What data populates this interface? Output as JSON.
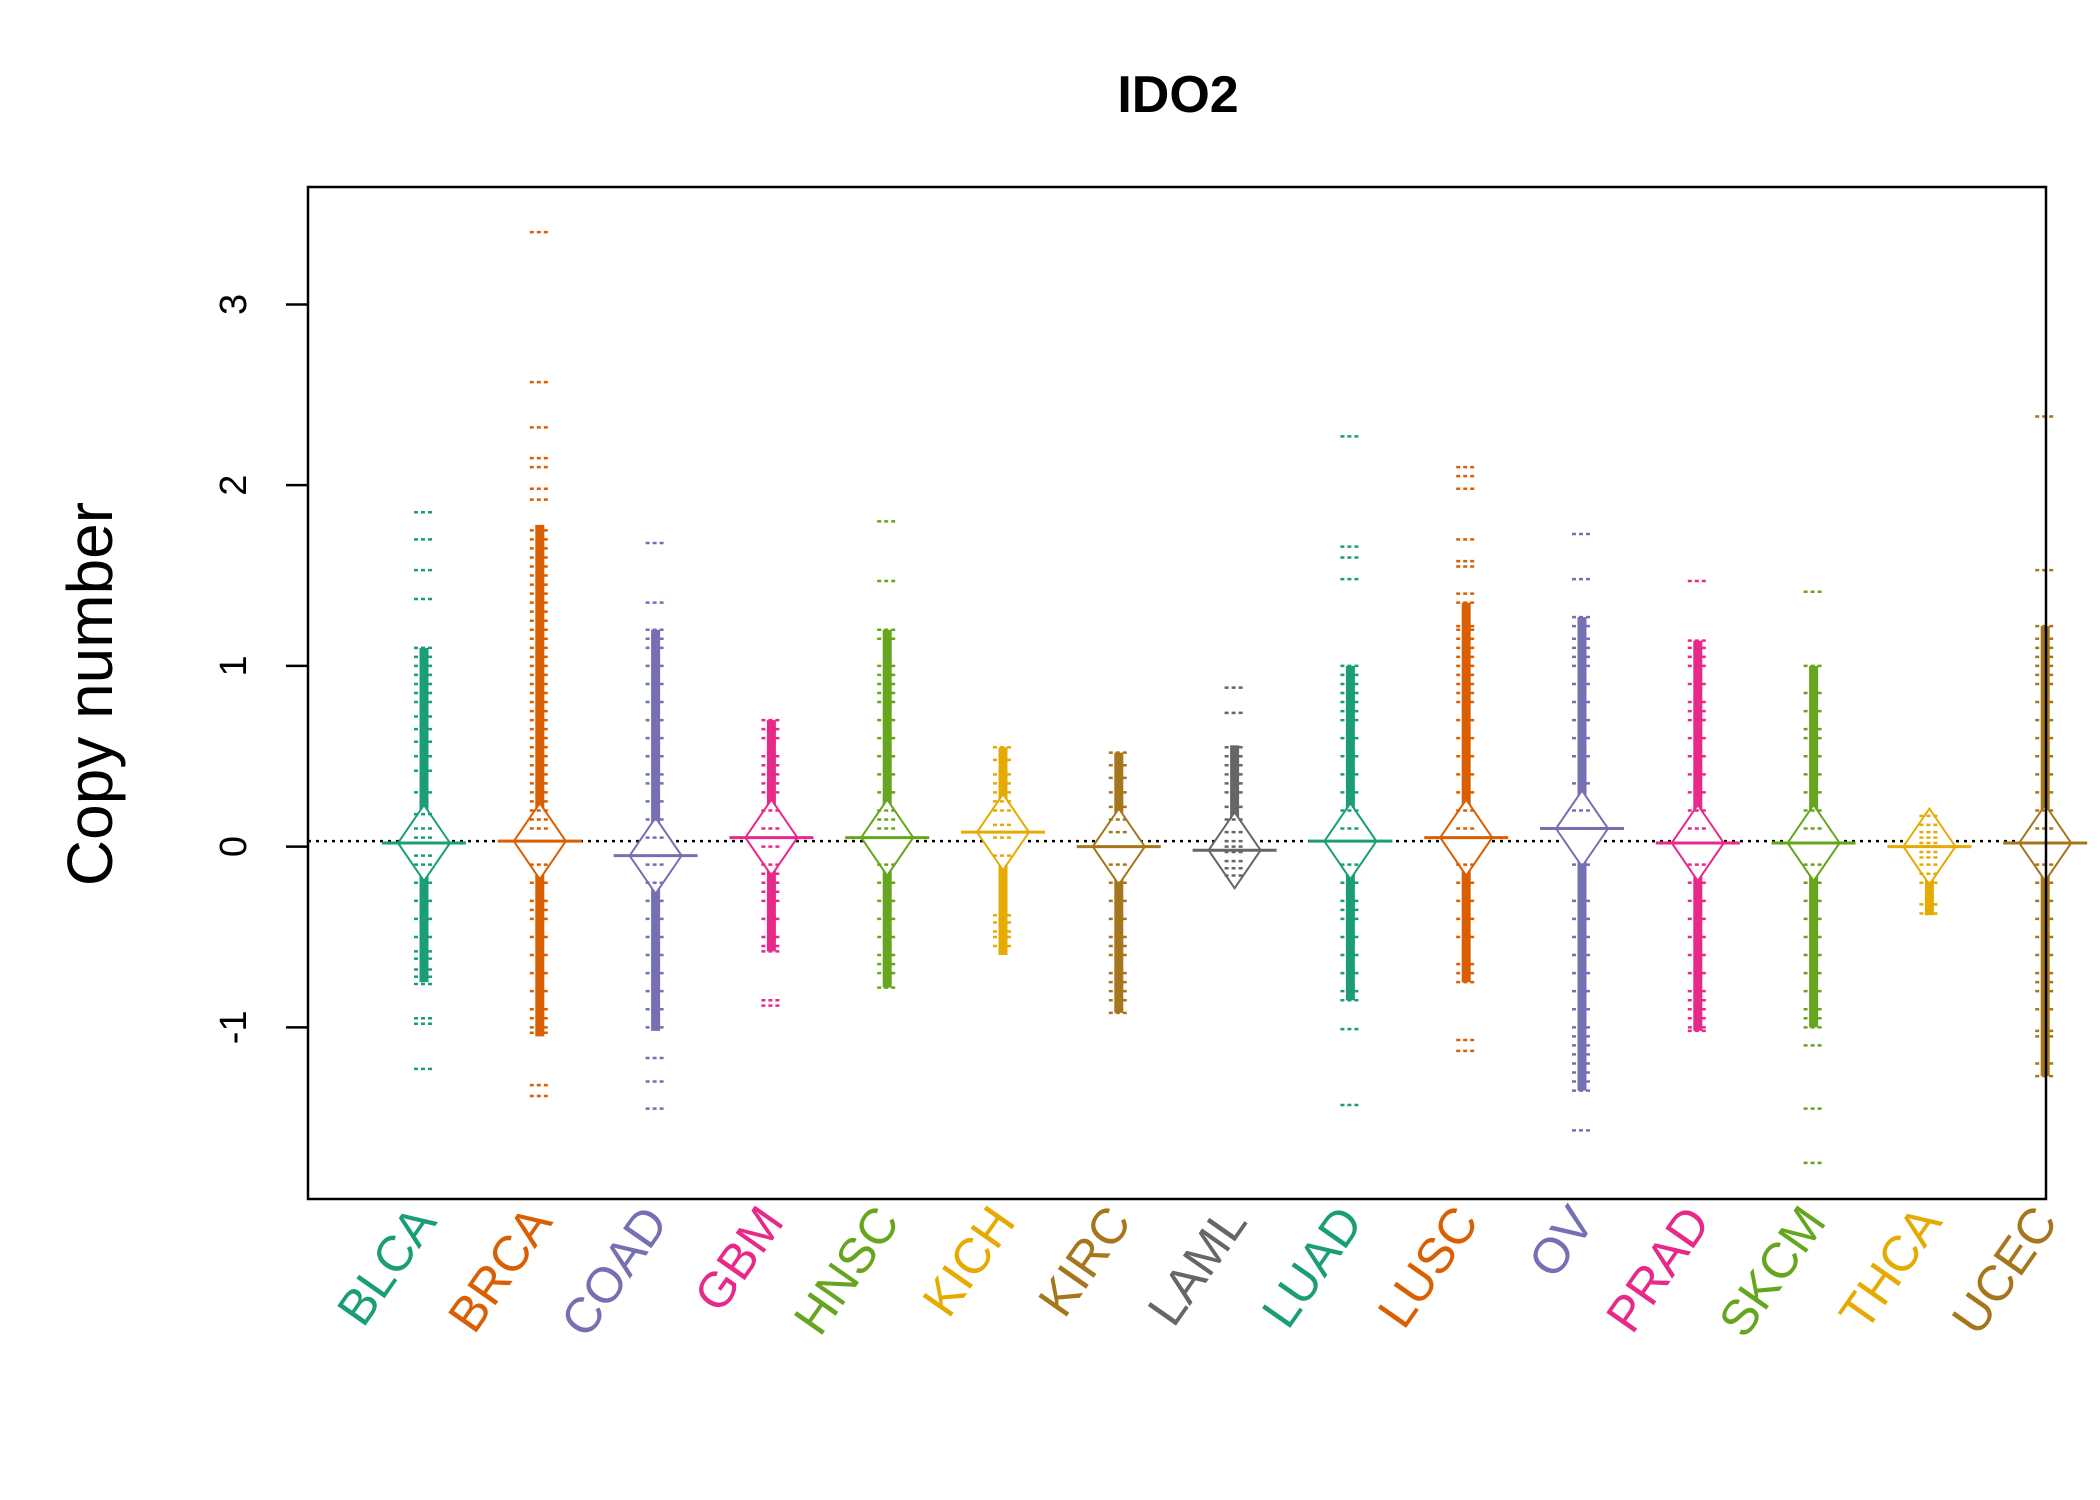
{
  "chart_data": {
    "type": "beanplot",
    "title": "IDO2",
    "xlabel": "",
    "ylabel": "Copy number",
    "ylim": [
      -1.95,
      3.65
    ],
    "yticks": [
      -1,
      0,
      1,
      2,
      3
    ],
    "ytick_labels": [
      "-1",
      "0",
      "1",
      "2",
      "3"
    ],
    "reference_line": 0.03,
    "grid": false,
    "series": [
      {
        "name": "BLCA",
        "color": "#1B9E77",
        "median": 0.02,
        "q_low": -0.75,
        "q_high": 1.1,
        "points": [
          1.85,
          1.7,
          1.53,
          1.37,
          1.1,
          1.05,
          1.0,
          0.95,
          0.9,
          0.85,
          0.8,
          0.72,
          0.65,
          0.58,
          0.5,
          0.42,
          0.3,
          0.18,
          0.1,
          0.05,
          -0.05,
          -0.1,
          -0.2,
          -0.3,
          -0.4,
          -0.5,
          -0.58,
          -0.62,
          -0.68,
          -0.72,
          -0.76,
          -0.95,
          -0.98,
          -1.23
        ]
      },
      {
        "name": "BRCA",
        "color": "#D95F02",
        "median": 0.03,
        "q_low": -1.05,
        "q_high": 1.78,
        "points": [
          3.4,
          2.57,
          2.32,
          2.15,
          2.1,
          1.98,
          1.92,
          1.75,
          1.7,
          1.65,
          1.6,
          1.55,
          1.5,
          1.45,
          1.4,
          1.35,
          1.3,
          1.25,
          1.2,
          1.15,
          1.1,
          1.05,
          1.0,
          0.95,
          0.9,
          0.85,
          0.8,
          0.75,
          0.7,
          0.65,
          0.6,
          0.55,
          0.5,
          0.45,
          0.4,
          0.35,
          0.3,
          0.25,
          0.2,
          0.15,
          0.1,
          -0.1,
          -0.2,
          -0.3,
          -0.35,
          -0.4,
          -0.5,
          -0.6,
          -0.7,
          -0.8,
          -0.9,
          -0.95,
          -1.0,
          -1.03,
          -1.32,
          -1.38
        ]
      },
      {
        "name": "COAD",
        "color": "#7570B3",
        "median": -0.05,
        "q_low": -1.02,
        "q_high": 1.2,
        "points": [
          1.68,
          1.35,
          1.2,
          1.15,
          1.1,
          1.0,
          0.9,
          0.8,
          0.7,
          0.6,
          0.5,
          0.4,
          0.35,
          0.25,
          0.15,
          0.05,
          -0.1,
          -0.2,
          -0.3,
          -0.4,
          -0.5,
          -0.6,
          -0.7,
          -0.8,
          -0.9,
          -1.0,
          -1.17,
          -1.3,
          -1.45
        ]
      },
      {
        "name": "GBM",
        "color": "#E7298A",
        "median": 0.05,
        "q_low": -0.58,
        "q_high": 0.7,
        "points": [
          0.7,
          0.65,
          0.6,
          0.5,
          0.45,
          0.4,
          0.35,
          0.3,
          0.2,
          0.1,
          0.0,
          -0.1,
          -0.15,
          -0.2,
          -0.25,
          -0.3,
          -0.4,
          -0.5,
          -0.55,
          -0.58,
          -0.85,
          -0.88
        ]
      },
      {
        "name": "HNSC",
        "color": "#66A61E",
        "median": 0.05,
        "q_low": -0.78,
        "q_high": 1.2,
        "points": [
          1.8,
          1.47,
          1.2,
          1.15,
          1.0,
          0.95,
          0.9,
          0.85,
          0.8,
          0.7,
          0.6,
          0.5,
          0.4,
          0.3,
          0.2,
          0.15,
          0.1,
          -0.1,
          -0.2,
          -0.3,
          -0.4,
          -0.5,
          -0.6,
          -0.65,
          -0.7,
          -0.78
        ]
      },
      {
        "name": "KICH",
        "color": "#E6AB02",
        "median": 0.08,
        "q_low": -0.6,
        "q_high": 0.55,
        "points": [
          0.55,
          0.48,
          0.4,
          0.35,
          0.3,
          0.25,
          0.2,
          0.12,
          0.05,
          -0.05,
          -0.38,
          -0.42,
          -0.47,
          -0.5,
          -0.55
        ]
      },
      {
        "name": "KIRC",
        "color": "#A6761D",
        "median": 0.0,
        "q_low": -0.92,
        "q_high": 0.52,
        "points": [
          0.52,
          0.45,
          0.38,
          0.3,
          0.22,
          0.15,
          0.08,
          0.0,
          -0.1,
          -0.2,
          -0.3,
          -0.4,
          -0.5,
          -0.55,
          -0.6,
          -0.7,
          -0.75,
          -0.8,
          -0.85,
          -0.92
        ]
      },
      {
        "name": "LAML",
        "color": "#666666",
        "median": -0.02,
        "q_low": -0.16,
        "q_high": 0.56,
        "points": [
          0.88,
          0.74,
          0.55,
          0.5,
          0.45,
          0.4,
          0.35,
          0.3,
          0.22,
          0.15,
          0.08,
          0.03,
          0.0,
          -0.03,
          -0.08,
          -0.12,
          -0.16
        ]
      },
      {
        "name": "LUAD",
        "color": "#1B9E77",
        "median": 0.03,
        "q_low": -0.85,
        "q_high": 1.0,
        "points": [
          2.27,
          1.66,
          1.6,
          1.48,
          1.0,
          0.95,
          0.9,
          0.85,
          0.8,
          0.75,
          0.7,
          0.6,
          0.5,
          0.4,
          0.3,
          0.2,
          0.1,
          -0.1,
          -0.2,
          -0.3,
          -0.35,
          -0.4,
          -0.5,
          -0.6,
          -0.7,
          -0.8,
          -0.85,
          -1.01,
          -1.43
        ]
      },
      {
        "name": "LUSC",
        "color": "#D95F02",
        "median": 0.05,
        "q_low": -0.75,
        "q_high": 1.35,
        "points": [
          2.1,
          2.05,
          1.98,
          1.7,
          1.58,
          1.55,
          1.4,
          1.35,
          1.22,
          1.2,
          1.15,
          1.1,
          1.05,
          1.0,
          0.95,
          0.9,
          0.85,
          0.8,
          0.7,
          0.6,
          0.5,
          0.4,
          0.3,
          0.2,
          0.1,
          -0.1,
          -0.2,
          -0.3,
          -0.4,
          -0.5,
          -0.65,
          -0.7,
          -0.75,
          -1.07,
          -1.13
        ]
      },
      {
        "name": "OV",
        "color": "#7570B3",
        "median": 0.1,
        "q_low": -1.35,
        "q_high": 1.27,
        "points": [
          1.73,
          1.48,
          1.27,
          1.22,
          1.15,
          1.1,
          1.05,
          1.0,
          0.9,
          0.8,
          0.7,
          0.6,
          0.5,
          0.35,
          0.2,
          0.1,
          -0.1,
          -0.3,
          -0.4,
          -0.5,
          -0.6,
          -0.7,
          -0.8,
          -0.9,
          -1.0,
          -1.05,
          -1.1,
          -1.15,
          -1.2,
          -1.25,
          -1.3,
          -1.35,
          -1.57
        ]
      },
      {
        "name": "PRAD",
        "color": "#E7298A",
        "median": 0.02,
        "q_low": -1.02,
        "q_high": 1.14,
        "points": [
          1.47,
          1.14,
          1.1,
          1.05,
          1.0,
          0.9,
          0.8,
          0.75,
          0.7,
          0.6,
          0.5,
          0.4,
          0.3,
          0.2,
          0.1,
          -0.1,
          -0.2,
          -0.3,
          -0.4,
          -0.5,
          -0.6,
          -0.7,
          -0.8,
          -0.85,
          -0.9,
          -0.95,
          -1.0,
          -1.02
        ]
      },
      {
        "name": "SKCM",
        "color": "#66A61E",
        "median": 0.02,
        "q_low": -1.0,
        "q_high": 1.0,
        "points": [
          1.41,
          1.0,
          0.85,
          0.75,
          0.65,
          0.6,
          0.5,
          0.4,
          0.3,
          0.2,
          0.1,
          -0.1,
          -0.2,
          -0.3,
          -0.4,
          -0.5,
          -0.6,
          -0.7,
          -0.8,
          -0.9,
          -0.95,
          -1.0,
          -1.1,
          -1.45,
          -1.75
        ]
      },
      {
        "name": "THCA",
        "color": "#E6AB02",
        "median": 0.0,
        "q_low": -0.38,
        "q_high": 0.17,
        "points": [
          0.17,
          0.12,
          0.08,
          0.05,
          0.02,
          0.0,
          -0.03,
          -0.06,
          -0.1,
          -0.15,
          -0.2,
          -0.32,
          -0.37
        ]
      },
      {
        "name": "UCEC",
        "color": "#A6761D",
        "median": 0.02,
        "q_low": -1.27,
        "q_high": 1.22,
        "points": [
          2.38,
          1.53,
          1.22,
          1.15,
          1.1,
          1.05,
          1.0,
          0.95,
          0.9,
          0.8,
          0.7,
          0.6,
          0.5,
          0.4,
          0.3,
          0.2,
          0.1,
          -0.1,
          -0.2,
          -0.3,
          -0.4,
          -0.5,
          -0.6,
          -0.7,
          -0.75,
          -0.8,
          -0.9,
          -1.02,
          -1.05,
          -1.2,
          -1.27
        ]
      }
    ]
  }
}
